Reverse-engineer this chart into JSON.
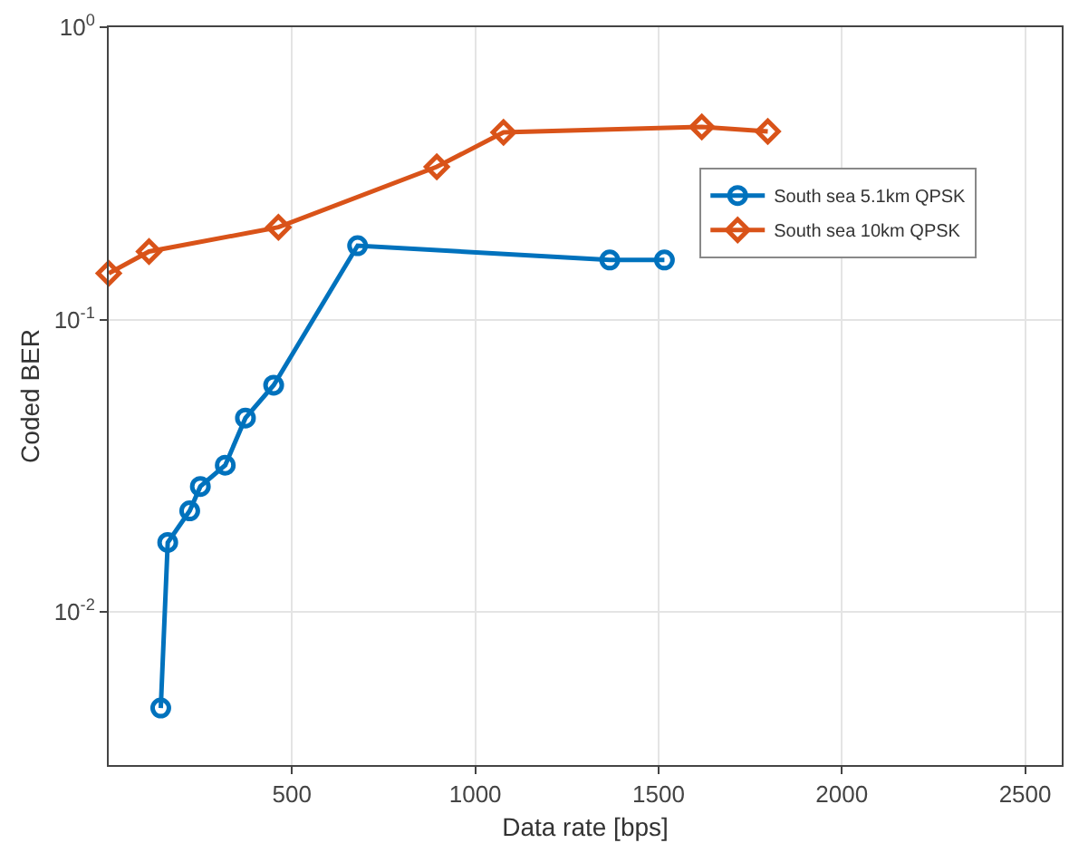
{
  "chart_data": {
    "type": "line",
    "xlabel": "Data rate [bps]",
    "ylabel": "Coded BER",
    "xlim": [
      0,
      2600
    ],
    "xticks": [
      500,
      1000,
      1500,
      2000,
      2500
    ],
    "log": "y",
    "ylim": [
      0.003,
      1
    ],
    "yticks": [
      {
        "value": 0.01,
        "label": "10$^{-2}$"
      },
      {
        "value": 0.1,
        "label": "10$^{-1}$"
      },
      {
        "value": 1,
        "label": "10$^{0}$"
      }
    ],
    "grid": true,
    "legend": "right",
    "line_style": "solid",
    "series": [
      {
        "name": "South sea 5.1km QPSK",
        "color": "#0072bd",
        "marker": "circle",
        "x": [
          142,
          161,
          221,
          250,
          318,
          373,
          450,
          679,
          1367,
          1516
        ],
        "values": [
          0.0047,
          0.0173,
          0.0222,
          0.0269,
          0.0318,
          0.0461,
          0.0597,
          0.179,
          0.16,
          0.16
        ]
      },
      {
        "name": "South sea 10km QPSK",
        "color": "#d95319",
        "marker": "diamond",
        "x": [
          0,
          110,
          463,
          895,
          1077,
          1618,
          1798
        ],
        "values": [
          0.144,
          0.171,
          0.207,
          0.333,
          0.437,
          0.456,
          0.44
        ]
      }
    ]
  }
}
